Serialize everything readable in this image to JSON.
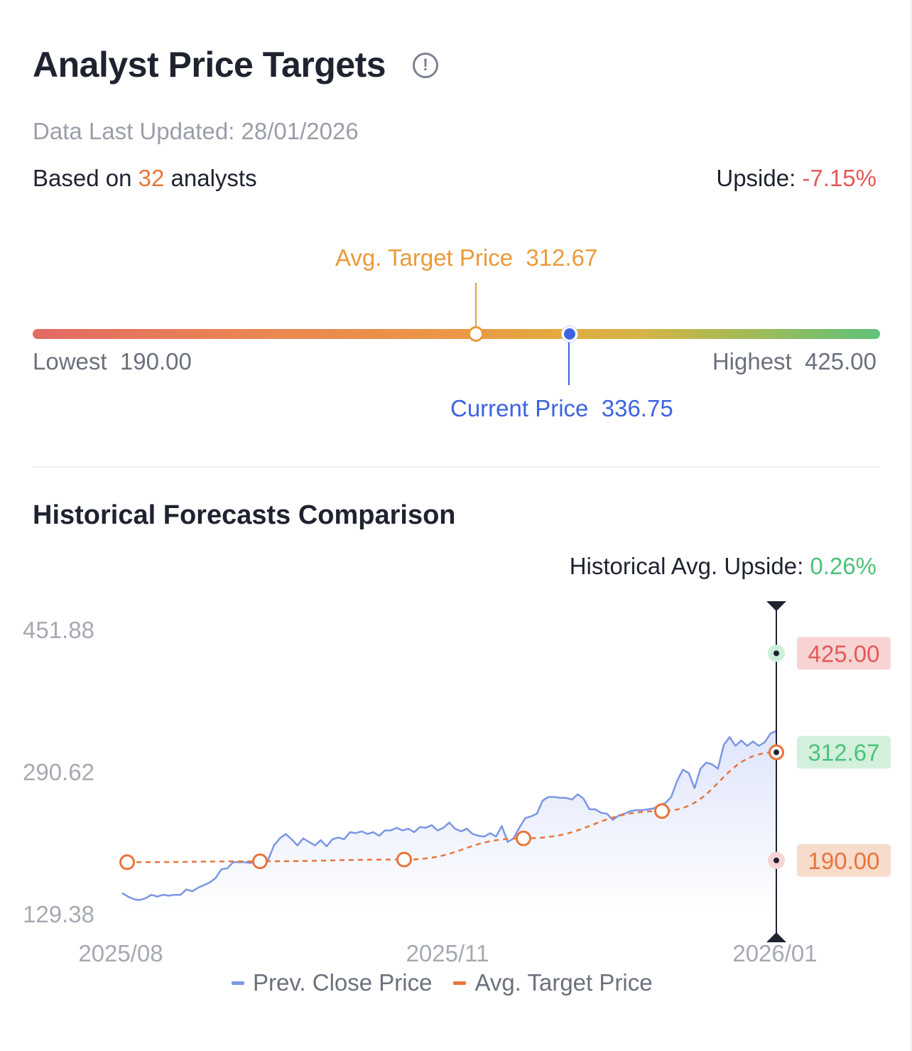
{
  "header": {
    "title": "Analyst Price Targets",
    "info_icon": "info-icon",
    "updated": "Data Last Updated: 28/01/2026",
    "based_prefix": "Based on ",
    "analyst_count": "32",
    "based_suffix": " analysts",
    "upside_label": "Upside: ",
    "upside_value": "-7.15%"
  },
  "range": {
    "avg_label": "Avg. Target Price",
    "avg_value": "312.67",
    "current_label": "Current Price",
    "current_value": "336.75",
    "lowest_label": "Lowest",
    "lowest_value": "190.00",
    "highest_label": "Highest",
    "highest_value": "425.00"
  },
  "historical": {
    "title": "Historical Forecasts Comparison",
    "upside_label": "Historical Avg. Upside: ",
    "upside_value": "0.26%"
  },
  "colors": {
    "price_line": "#7b96e3",
    "target_line": "#e8743b",
    "high_badge_bg": "#f7d3d3",
    "high_badge_text": "#e25a5a",
    "avg_badge_bg": "#d3f0dd",
    "avg_badge_text": "#4cc17a",
    "low_badge_bg": "#f7dccc",
    "low_badge_text": "#e8743b"
  },
  "chart_data": {
    "type": "line",
    "y_ticks": [
      "451.88",
      "290.62",
      "129.38"
    ],
    "ylim": [
      129.38,
      451.88
    ],
    "x_ticks": [
      "2025/08",
      "2025/11",
      "2026/01"
    ],
    "series": [
      {
        "name": "Prev. Close Price",
        "values": [
          153,
          149,
          146,
          145,
          147,
          151,
          149,
          151,
          150,
          151,
          151,
          157,
          155,
          159,
          162,
          165,
          170,
          180,
          181,
          188,
          188,
          188,
          187,
          190,
          191,
          191,
          207,
          215,
          220,
          214,
          207,
          215,
          211,
          207,
          213,
          206,
          214,
          216,
          214,
          222,
          221,
          223,
          220,
          222,
          218,
          224,
          224,
          227,
          224,
          226,
          222,
          228,
          227,
          230,
          224,
          227,
          233,
          226,
          223,
          226,
          220,
          218,
          217,
          221,
          217,
          229,
          211,
          215,
          227,
          238,
          240,
          243,
          258,
          262,
          262,
          261,
          261,
          259,
          265,
          260,
          248,
          248,
          244,
          243,
          236,
          241,
          243,
          246,
          247,
          247,
          248,
          249,
          253,
          255,
          262,
          280,
          293,
          289,
          272,
          294,
          301,
          299,
          294,
          321,
          330,
          320,
          326,
          320,
          325,
          320,
          324,
          334,
          337
        ]
      },
      {
        "name": "Avg. Target Price",
        "values": [
          188,
          189,
          191,
          215,
          246,
          251,
          312.67
        ]
      }
    ],
    "latest_markers": {
      "high": "425.00",
      "avg": "312.67",
      "low": "190.00"
    },
    "legend": [
      "Prev. Close Price",
      "Avg. Target Price"
    ],
    "legend_position": "bottom"
  }
}
